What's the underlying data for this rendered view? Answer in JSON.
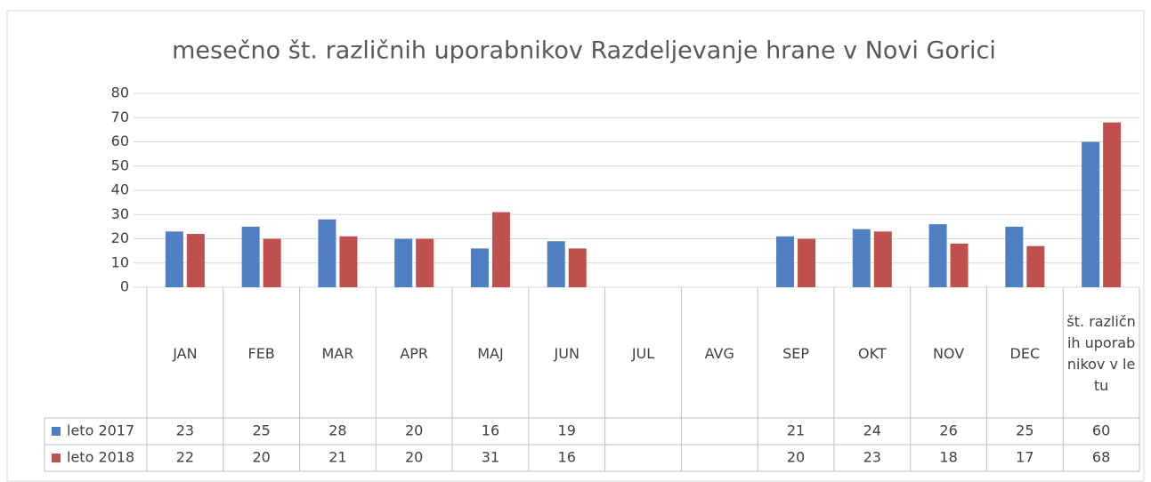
{
  "chart_data": {
    "type": "bar",
    "title": "mesečno št. različnih uporabnikov Razdeljevanje hrane v Novi Gorici",
    "categories": [
      "JAN",
      "FEB",
      "MAR",
      "APR",
      "MAJ",
      "JUN",
      "JUL",
      "AVG",
      "SEP",
      "OKT",
      "NOV",
      "DEC",
      "št. različnih uporabnikov v letu"
    ],
    "series": [
      {
        "name": "leto 2017",
        "color": "#4f7fc1",
        "values": [
          23,
          25,
          28,
          20,
          16,
          19,
          null,
          null,
          21,
          24,
          26,
          25,
          60
        ]
      },
      {
        "name": "leto 2018",
        "color": "#c0504d",
        "values": [
          22,
          20,
          21,
          20,
          31,
          16,
          null,
          null,
          20,
          23,
          18,
          17,
          68
        ]
      }
    ],
    "ylim": [
      0,
      80
    ],
    "yticks": [
      0,
      10,
      20,
      30,
      40,
      50,
      60,
      70,
      80
    ],
    "grid": true
  }
}
